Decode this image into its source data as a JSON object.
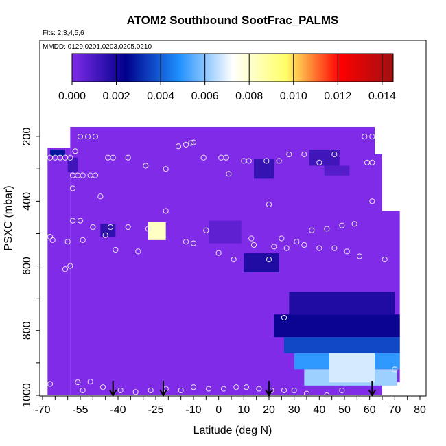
{
  "chart_data": {
    "type": "heatmap",
    "title": "ATOM2 Southbound SootFrac_PALMS",
    "subtitle_flights": "Flts: 2,3,4,5,6",
    "subtitle_dates": "MMDD: 0129,0201,0203,0205,0210",
    "xlabel": "Latitude (deg N)",
    "ylabel": "PSXC (mbar)",
    "xlim": [
      -70,
      80
    ],
    "ylim": [
      1000,
      100
    ],
    "x_ticks": [
      -70,
      -55,
      -40,
      -25,
      -10,
      0,
      10,
      20,
      30,
      40,
      50,
      60,
      70,
      80
    ],
    "y_ticks": [
      200,
      400,
      600,
      800,
      1000
    ],
    "colorbar": {
      "min": 0.0,
      "max": 0.0145,
      "ticks": [
        "0.000",
        "0.002",
        "0.004",
        "0.006",
        "0.008",
        "0.010",
        "0.012",
        "0.014"
      ],
      "colors": [
        "#7f2be8",
        "#00008b",
        "#1e90ff",
        "#ffffff",
        "#ffff66",
        "#ff0000",
        "#a01010"
      ]
    },
    "background_value": 0.0,
    "cells": [
      {
        "lat": [
          -67,
          -61
        ],
        "p": [
          240,
          260
        ],
        "value": 0.0028
      },
      {
        "lat": [
          -60,
          -56
        ],
        "p": [
          265,
          310
        ],
        "value": 0.0012
      },
      {
        "lat": [
          -47,
          -41
        ],
        "p": [
          470,
          510
        ],
        "value": 0.0015
      },
      {
        "lat": [
          -28,
          -21
        ],
        "p": [
          465,
          520
        ],
        "value": 0.0082
      },
      {
        "lat": [
          -4,
          9
        ],
        "p": [
          460,
          530
        ],
        "value": 0.0006
      },
      {
        "lat": [
          14,
          22
        ],
        "p": [
          270,
          330
        ],
        "value": 0.0014
      },
      {
        "lat": [
          10,
          24
        ],
        "p": [
          560,
          620
        ],
        "value": 0.0018
      },
      {
        "lat": [
          36,
          48
        ],
        "p": [
          240,
          290
        ],
        "value": 0.0012
      },
      {
        "lat": [
          42,
          52
        ],
        "p": [
          290,
          320
        ],
        "value": 0.0008
      },
      {
        "lat": [
          28,
          70
        ],
        "p": [
          680,
          750
        ],
        "value": 0.0018
      },
      {
        "lat": [
          22,
          72
        ],
        "p": [
          750,
          820
        ],
        "value": 0.0022
      },
      {
        "lat": [
          26,
          72
        ],
        "p": [
          820,
          870
        ],
        "value": 0.0036
      },
      {
        "lat": [
          30,
          72
        ],
        "p": [
          870,
          920
        ],
        "value": 0.005
      },
      {
        "lat": [
          34,
          71
        ],
        "p": [
          920,
          970
        ],
        "value": 0.0062
      },
      {
        "lat": [
          44,
          62
        ],
        "p": [
          870,
          960
        ],
        "value": 0.0068
      }
    ],
    "sample_points": [
      {
        "lat": -67,
        "p": 265
      },
      {
        "lat": -65,
        "p": 265
      },
      {
        "lat": -63,
        "p": 265
      },
      {
        "lat": -61,
        "p": 265
      },
      {
        "lat": -59,
        "p": 265
      },
      {
        "lat": -57,
        "p": 245
      },
      {
        "lat": -55,
        "p": 200
      },
      {
        "lat": -52,
        "p": 200
      },
      {
        "lat": -49,
        "p": 200
      },
      {
        "lat": -44,
        "p": 265
      },
      {
        "lat": -42,
        "p": 265
      },
      {
        "lat": -36,
        "p": 265
      },
      {
        "lat": -29,
        "p": 290
      },
      {
        "lat": -21,
        "p": 300
      },
      {
        "lat": -16,
        "p": 230
      },
      {
        "lat": -13,
        "p": 225
      },
      {
        "lat": -11,
        "p": 220
      },
      {
        "lat": -10,
        "p": 218
      },
      {
        "lat": -6,
        "p": 265
      },
      {
        "lat": 1,
        "p": 265
      },
      {
        "lat": 3,
        "p": 265
      },
      {
        "lat": 4,
        "p": 315
      },
      {
        "lat": 10,
        "p": 275
      },
      {
        "lat": 12,
        "p": 275
      },
      {
        "lat": 19,
        "p": 275
      },
      {
        "lat": 24,
        "p": 275
      },
      {
        "lat": 28,
        "p": 255
      },
      {
        "lat": 34,
        "p": 255
      },
      {
        "lat": 40,
        "p": 280
      },
      {
        "lat": 46,
        "p": 255
      },
      {
        "lat": 58,
        "p": 200
      },
      {
        "lat": 61,
        "p": 200
      },
      {
        "lat": 59,
        "p": 280
      },
      {
        "lat": 61,
        "p": 280
      },
      {
        "lat": -58,
        "p": 320
      },
      {
        "lat": -56,
        "p": 320
      },
      {
        "lat": -54,
        "p": 320
      },
      {
        "lat": -51,
        "p": 320
      },
      {
        "lat": -49,
        "p": 320
      },
      {
        "lat": -47,
        "p": 385
      },
      {
        "lat": -58,
        "p": 360
      },
      {
        "lat": -58,
        "p": 460
      },
      {
        "lat": -55,
        "p": 460
      },
      {
        "lat": -50,
        "p": 480
      },
      {
        "lat": -43,
        "p": 480
      },
      {
        "lat": -36,
        "p": 480
      },
      {
        "lat": -28,
        "p": 485
      },
      {
        "lat": -21,
        "p": 430
      },
      {
        "lat": -5,
        "p": 490
      },
      {
        "lat": 20,
        "p": 410
      },
      {
        "lat": 61,
        "p": 400
      },
      {
        "lat": -67,
        "p": 510
      },
      {
        "lat": -66,
        "p": 520
      },
      {
        "lat": -60,
        "p": 525
      },
      {
        "lat": -54,
        "p": 520
      },
      {
        "lat": -45,
        "p": 505
      },
      {
        "lat": -41,
        "p": 550
      },
      {
        "lat": -32,
        "p": 555
      },
      {
        "lat": -13,
        "p": 525
      },
      {
        "lat": -10,
        "p": 530
      },
      {
        "lat": 0,
        "p": 560
      },
      {
        "lat": 6,
        "p": 580
      },
      {
        "lat": 13,
        "p": 515
      },
      {
        "lat": 14,
        "p": 535
      },
      {
        "lat": 20,
        "p": 580
      },
      {
        "lat": 22,
        "p": 540
      },
      {
        "lat": 25,
        "p": 515
      },
      {
        "lat": 27,
        "p": 545
      },
      {
        "lat": 31,
        "p": 525
      },
      {
        "lat": 34,
        "p": 535
      },
      {
        "lat": 37,
        "p": 490
      },
      {
        "lat": 40,
        "p": 545
      },
      {
        "lat": 43,
        "p": 485
      },
      {
        "lat": 46,
        "p": 545
      },
      {
        "lat": 49,
        "p": 475
      },
      {
        "lat": 54,
        "p": 470
      },
      {
        "lat": 51,
        "p": 555
      },
      {
        "lat": 56,
        "p": 570
      },
      {
        "lat": 66,
        "p": 580
      },
      {
        "lat": -59,
        "p": 600
      },
      {
        "lat": -61,
        "p": 610
      },
      {
        "lat": 26,
        "p": 760
      },
      {
        "lat": 70,
        "p": 920
      },
      {
        "lat": -67,
        "p": 965
      },
      {
        "lat": -56,
        "p": 960
      },
      {
        "lat": -54,
        "p": 985
      },
      {
        "lat": -51,
        "p": 958
      },
      {
        "lat": -46,
        "p": 975
      },
      {
        "lat": -39,
        "p": 985
      },
      {
        "lat": -33,
        "p": 990
      },
      {
        "lat": -27,
        "p": 985
      },
      {
        "lat": -21,
        "p": 980
      },
      {
        "lat": -15,
        "p": 985
      },
      {
        "lat": -10,
        "p": 975
      },
      {
        "lat": -4,
        "p": 980
      },
      {
        "lat": 2,
        "p": 980
      },
      {
        "lat": 7,
        "p": 975
      },
      {
        "lat": 11,
        "p": 975
      },
      {
        "lat": 16,
        "p": 980
      },
      {
        "lat": 21,
        "p": 985
      },
      {
        "lat": 26,
        "p": 985
      },
      {
        "lat": 30,
        "p": 985
      },
      {
        "lat": 35,
        "p": 995
      },
      {
        "lat": 43,
        "p": 1000
      },
      {
        "lat": 49,
        "p": 985
      }
    ],
    "arrows_lat": [
      -42,
      -22,
      20,
      61
    ],
    "data_extent": {
      "lat_start": -68,
      "lat_end": 72,
      "segments": [
        {
          "lat": [
            -68,
            -59
          ],
          "p": [
            235,
            1000
          ]
        },
        {
          "lat": [
            -59,
            62
          ],
          "p": [
            170,
            1000
          ]
        },
        {
          "lat": [
            62,
            65
          ],
          "p": [
            255,
            1000
          ]
        },
        {
          "lat": [
            65,
            72
          ],
          "p": [
            430,
            960
          ]
        }
      ]
    },
    "grid": false,
    "legend_position": "top"
  }
}
